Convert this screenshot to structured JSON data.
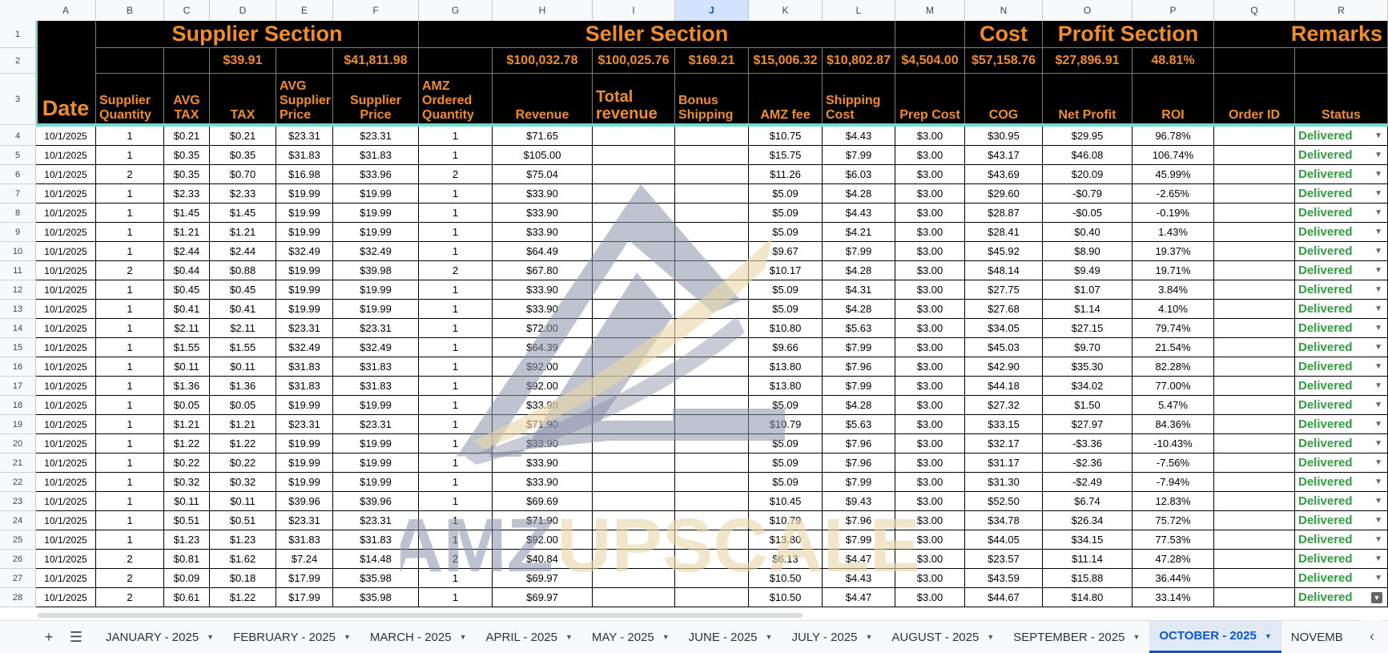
{
  "columns": [
    "A",
    "B",
    "C",
    "D",
    "E",
    "F",
    "G",
    "H",
    "I",
    "J",
    "K",
    "L",
    "M",
    "N",
    "O",
    "P",
    "Q",
    "R"
  ],
  "selected_column": "J",
  "section_titles": {
    "supplier": "Supplier Section",
    "seller": "Seller Section",
    "cost": "Cost",
    "profit": "Profit Section",
    "remarks": "Remarks"
  },
  "totals": {
    "tax": "$39.91",
    "supplier_price": "$41,811.98",
    "revenue": "$100,032.78",
    "total_revenue": "$100,025.76",
    "bonus_shipping": "$169.21",
    "amz_fee": "$15,006.32",
    "shipping_cost": "$10,802.87",
    "prep_cost": "$4,504.00",
    "cog": "$57,158.76",
    "net_profit": "$27,896.91",
    "roi": "48.81%"
  },
  "headers": {
    "date": "Date",
    "supplier_quantity": "Supplier Quantity",
    "avg_tax": "AVG TAX",
    "tax": "TAX",
    "avg_supplier_price": "AVG Supplier Price",
    "supplier_price": "Supplier Price",
    "amz_ordered_quantity": "AMZ Ordered Quantity",
    "revenue": "Revenue",
    "total_revenue": "Total revenue",
    "bonus_shipping": "Bonus Shipping",
    "amz_fee": "AMZ fee",
    "shipping_cost": "Shipping Cost",
    "prep_cost": "Prep Cost",
    "cog": "COG",
    "net_profit": "Net Profit",
    "roi": "ROI",
    "order_id": "Order ID",
    "status": "Status"
  },
  "header_row_numbers": [
    "1",
    "2",
    "3"
  ],
  "rows": [
    {
      "n": "4",
      "date": "10/1/2025",
      "qty": "1",
      "avg_tax": "$0.21",
      "tax": "$0.21",
      "avg_price": "$23.31",
      "price": "$23.31",
      "amz_qty": "1",
      "revenue": "$71.65",
      "total_rev": "",
      "bonus": "",
      "amz_fee": "$10.75",
      "ship": "$4.43",
      "prep": "$3.00",
      "cog": "$30.95",
      "profit": "$29.95",
      "roi": "96.78%",
      "order": "",
      "status": "Delivered"
    },
    {
      "n": "5",
      "date": "10/1/2025",
      "qty": "1",
      "avg_tax": "$0.35",
      "tax": "$0.35",
      "avg_price": "$31.83",
      "price": "$31.83",
      "amz_qty": "1",
      "revenue": "$105.00",
      "total_rev": "",
      "bonus": "",
      "amz_fee": "$15.75",
      "ship": "$7.99",
      "prep": "$3.00",
      "cog": "$43.17",
      "profit": "$46.08",
      "roi": "106.74%",
      "order": "",
      "status": "Delivered"
    },
    {
      "n": "6",
      "date": "10/1/2025",
      "qty": "2",
      "avg_tax": "$0.35",
      "tax": "$0.70",
      "avg_price": "$16.98",
      "price": "$33.96",
      "amz_qty": "2",
      "revenue": "$75.04",
      "total_rev": "",
      "bonus": "",
      "amz_fee": "$11.26",
      "ship": "$6.03",
      "prep": "$3.00",
      "cog": "$43.69",
      "profit": "$20.09",
      "roi": "45.99%",
      "order": "",
      "status": "Delivered"
    },
    {
      "n": "7",
      "date": "10/1/2025",
      "qty": "1",
      "avg_tax": "$2.33",
      "tax": "$2.33",
      "avg_price": "$19.99",
      "price": "$19.99",
      "amz_qty": "1",
      "revenue": "$33.90",
      "total_rev": "",
      "bonus": "",
      "amz_fee": "$5.09",
      "ship": "$4.28",
      "prep": "$3.00",
      "cog": "$29.60",
      "profit": "-$0.79",
      "roi": "-2.65%",
      "order": "",
      "status": "Delivered"
    },
    {
      "n": "8",
      "date": "10/1/2025",
      "qty": "1",
      "avg_tax": "$1.45",
      "tax": "$1.45",
      "avg_price": "$19.99",
      "price": "$19.99",
      "amz_qty": "1",
      "revenue": "$33.90",
      "total_rev": "",
      "bonus": "",
      "amz_fee": "$5.09",
      "ship": "$4.43",
      "prep": "$3.00",
      "cog": "$28.87",
      "profit": "-$0.05",
      "roi": "-0.19%",
      "order": "",
      "status": "Delivered"
    },
    {
      "n": "9",
      "date": "10/1/2025",
      "qty": "1",
      "avg_tax": "$1.21",
      "tax": "$1.21",
      "avg_price": "$19.99",
      "price": "$19.99",
      "amz_qty": "1",
      "revenue": "$33.90",
      "total_rev": "",
      "bonus": "",
      "amz_fee": "$5.09",
      "ship": "$4.21",
      "prep": "$3.00",
      "cog": "$28.41",
      "profit": "$0.40",
      "roi": "1.43%",
      "order": "",
      "status": "Delivered"
    },
    {
      "n": "10",
      "date": "10/1/2025",
      "qty": "1",
      "avg_tax": "$2.44",
      "tax": "$2.44",
      "avg_price": "$32.49",
      "price": "$32.49",
      "amz_qty": "1",
      "revenue": "$64.49",
      "total_rev": "",
      "bonus": "",
      "amz_fee": "$9.67",
      "ship": "$7.99",
      "prep": "$3.00",
      "cog": "$45.92",
      "profit": "$8.90",
      "roi": "19.37%",
      "order": "",
      "status": "Delivered"
    },
    {
      "n": "11",
      "date": "10/1/2025",
      "qty": "2",
      "avg_tax": "$0.44",
      "tax": "$0.88",
      "avg_price": "$19.99",
      "price": "$39.98",
      "amz_qty": "2",
      "revenue": "$67.80",
      "total_rev": "",
      "bonus": "",
      "amz_fee": "$10.17",
      "ship": "$4.28",
      "prep": "$3.00",
      "cog": "$48.14",
      "profit": "$9.49",
      "roi": "19.71%",
      "order": "",
      "status": "Delivered"
    },
    {
      "n": "12",
      "date": "10/1/2025",
      "qty": "1",
      "avg_tax": "$0.45",
      "tax": "$0.45",
      "avg_price": "$19.99",
      "price": "$19.99",
      "amz_qty": "1",
      "revenue": "$33.90",
      "total_rev": "",
      "bonus": "",
      "amz_fee": "$5.09",
      "ship": "$4.31",
      "prep": "$3.00",
      "cog": "$27.75",
      "profit": "$1.07",
      "roi": "3.84%",
      "order": "",
      "status": "Delivered"
    },
    {
      "n": "13",
      "date": "10/1/2025",
      "qty": "1",
      "avg_tax": "$0.41",
      "tax": "$0.41",
      "avg_price": "$19.99",
      "price": "$19.99",
      "amz_qty": "1",
      "revenue": "$33.90",
      "total_rev": "",
      "bonus": "",
      "amz_fee": "$5.09",
      "ship": "$4.28",
      "prep": "$3.00",
      "cog": "$27.68",
      "profit": "$1.14",
      "roi": "4.10%",
      "order": "",
      "status": "Delivered"
    },
    {
      "n": "14",
      "date": "10/1/2025",
      "qty": "1",
      "avg_tax": "$2.11",
      "tax": "$2.11",
      "avg_price": "$23.31",
      "price": "$23.31",
      "amz_qty": "1",
      "revenue": "$72.00",
      "total_rev": "",
      "bonus": "",
      "amz_fee": "$10.80",
      "ship": "$5.63",
      "prep": "$3.00",
      "cog": "$34.05",
      "profit": "$27.15",
      "roi": "79.74%",
      "order": "",
      "status": "Delivered"
    },
    {
      "n": "15",
      "date": "10/1/2025",
      "qty": "1",
      "avg_tax": "$1.55",
      "tax": "$1.55",
      "avg_price": "$32.49",
      "price": "$32.49",
      "amz_qty": "1",
      "revenue": "$64.39",
      "total_rev": "",
      "bonus": "",
      "amz_fee": "$9.66",
      "ship": "$7.99",
      "prep": "$3.00",
      "cog": "$45.03",
      "profit": "$9.70",
      "roi": "21.54%",
      "order": "",
      "status": "Delivered"
    },
    {
      "n": "16",
      "date": "10/1/2025",
      "qty": "1",
      "avg_tax": "$0.11",
      "tax": "$0.11",
      "avg_price": "$31.83",
      "price": "$31.83",
      "amz_qty": "1",
      "revenue": "$92.00",
      "total_rev": "",
      "bonus": "",
      "amz_fee": "$13.80",
      "ship": "$7.96",
      "prep": "$3.00",
      "cog": "$42.90",
      "profit": "$35.30",
      "roi": "82.28%",
      "order": "",
      "status": "Delivered"
    },
    {
      "n": "17",
      "date": "10/1/2025",
      "qty": "1",
      "avg_tax": "$1.36",
      "tax": "$1.36",
      "avg_price": "$31.83",
      "price": "$31.83",
      "amz_qty": "1",
      "revenue": "$92.00",
      "total_rev": "",
      "bonus": "",
      "amz_fee": "$13.80",
      "ship": "$7.99",
      "prep": "$3.00",
      "cog": "$44.18",
      "profit": "$34.02",
      "roi": "77.00%",
      "order": "",
      "status": "Delivered"
    },
    {
      "n": "18",
      "date": "10/1/2025",
      "qty": "1",
      "avg_tax": "$0.05",
      "tax": "$0.05",
      "avg_price": "$19.99",
      "price": "$19.99",
      "amz_qty": "1",
      "revenue": "$33.90",
      "total_rev": "",
      "bonus": "",
      "amz_fee": "$5.09",
      "ship": "$4.28",
      "prep": "$3.00",
      "cog": "$27.32",
      "profit": "$1.50",
      "roi": "5.47%",
      "order": "",
      "status": "Delivered"
    },
    {
      "n": "19",
      "date": "10/1/2025",
      "qty": "1",
      "avg_tax": "$1.21",
      "tax": "$1.21",
      "avg_price": "$23.31",
      "price": "$23.31",
      "amz_qty": "1",
      "revenue": "$71.90",
      "total_rev": "",
      "bonus": "",
      "amz_fee": "$10.79",
      "ship": "$5.63",
      "prep": "$3.00",
      "cog": "$33.15",
      "profit": "$27.97",
      "roi": "84.36%",
      "order": "",
      "status": "Delivered"
    },
    {
      "n": "20",
      "date": "10/1/2025",
      "qty": "1",
      "avg_tax": "$1.22",
      "tax": "$1.22",
      "avg_price": "$19.99",
      "price": "$19.99",
      "amz_qty": "1",
      "revenue": "$33.90",
      "total_rev": "",
      "bonus": "",
      "amz_fee": "$5.09",
      "ship": "$7.96",
      "prep": "$3.00",
      "cog": "$32.17",
      "profit": "-$3.36",
      "roi": "-10.43%",
      "order": "",
      "status": "Delivered"
    },
    {
      "n": "21",
      "date": "10/1/2025",
      "qty": "1",
      "avg_tax": "$0.22",
      "tax": "$0.22",
      "avg_price": "$19.99",
      "price": "$19.99",
      "amz_qty": "1",
      "revenue": "$33.90",
      "total_rev": "",
      "bonus": "",
      "amz_fee": "$5.09",
      "ship": "$7.96",
      "prep": "$3.00",
      "cog": "$31.17",
      "profit": "-$2.36",
      "roi": "-7.56%",
      "order": "",
      "status": "Delivered"
    },
    {
      "n": "22",
      "date": "10/1/2025",
      "qty": "1",
      "avg_tax": "$0.32",
      "tax": "$0.32",
      "avg_price": "$19.99",
      "price": "$19.99",
      "amz_qty": "1",
      "revenue": "$33.90",
      "total_rev": "",
      "bonus": "",
      "amz_fee": "$5.09",
      "ship": "$7.99",
      "prep": "$3.00",
      "cog": "$31.30",
      "profit": "-$2.49",
      "roi": "-7.94%",
      "order": "",
      "status": "Delivered"
    },
    {
      "n": "23",
      "date": "10/1/2025",
      "qty": "1",
      "avg_tax": "$0.11",
      "tax": "$0.11",
      "avg_price": "$39.96",
      "price": "$39.96",
      "amz_qty": "1",
      "revenue": "$69.69",
      "total_rev": "",
      "bonus": "",
      "amz_fee": "$10.45",
      "ship": "$9.43",
      "prep": "$3.00",
      "cog": "$52.50",
      "profit": "$6.74",
      "roi": "12.83%",
      "order": "",
      "status": "Delivered"
    },
    {
      "n": "24",
      "date": "10/1/2025",
      "qty": "1",
      "avg_tax": "$0.51",
      "tax": "$0.51",
      "avg_price": "$23.31",
      "price": "$23.31",
      "amz_qty": "1",
      "revenue": "$71.90",
      "total_rev": "",
      "bonus": "",
      "amz_fee": "$10.79",
      "ship": "$7.96",
      "prep": "$3.00",
      "cog": "$34.78",
      "profit": "$26.34",
      "roi": "75.72%",
      "order": "",
      "status": "Delivered"
    },
    {
      "n": "25",
      "date": "10/1/2025",
      "qty": "1",
      "avg_tax": "$1.23",
      "tax": "$1.23",
      "avg_price": "$31.83",
      "price": "$31.83",
      "amz_qty": "1",
      "revenue": "$92.00",
      "total_rev": "",
      "bonus": "",
      "amz_fee": "$13.80",
      "ship": "$7.99",
      "prep": "$3.00",
      "cog": "$44.05",
      "profit": "$34.15",
      "roi": "77.53%",
      "order": "",
      "status": "Delivered"
    },
    {
      "n": "26",
      "date": "10/1/2025",
      "qty": "2",
      "avg_tax": "$0.81",
      "tax": "$1.62",
      "avg_price": "$7.24",
      "price": "$14.48",
      "amz_qty": "2",
      "revenue": "$40.84",
      "total_rev": "",
      "bonus": "",
      "amz_fee": "$6.13",
      "ship": "$4.47",
      "prep": "$3.00",
      "cog": "$23.57",
      "profit": "$11.14",
      "roi": "47.28%",
      "order": "",
      "status": "Delivered"
    },
    {
      "n": "27",
      "date": "10/1/2025",
      "qty": "2",
      "avg_tax": "$0.09",
      "tax": "$0.18",
      "avg_price": "$17.99",
      "price": "$35.98",
      "amz_qty": "1",
      "revenue": "$69.97",
      "total_rev": "",
      "bonus": "",
      "amz_fee": "$10.50",
      "ship": "$4.43",
      "prep": "$3.00",
      "cog": "$43.59",
      "profit": "$15.88",
      "roi": "36.44%",
      "order": "",
      "status": "Delivered"
    },
    {
      "n": "28",
      "date": "10/1/2025",
      "qty": "2",
      "avg_tax": "$0.61",
      "tax": "$1.22",
      "avg_price": "$17.99",
      "price": "$35.98",
      "amz_qty": "1",
      "revenue": "$69.97",
      "total_rev": "",
      "bonus": "",
      "amz_fee": "$10.50",
      "ship": "$4.47",
      "prep": "$3.00",
      "cog": "$44.67",
      "profit": "$14.80",
      "roi": "33.14%",
      "order": "",
      "status": "Delivered"
    }
  ],
  "watermark_text": {
    "part1": "AMZ",
    "part2": "UPSCALE"
  },
  "tabs": [
    "JANUARY - 2025",
    "FEBRUARY - 2025",
    "MARCH - 2025",
    "APRIL - 2025",
    "MAY - 2025",
    "JUNE - 2025",
    "JULY - 2025",
    "AUGUST - 2025",
    "SEPTEMBER - 2025",
    "OCTOBER - 2025",
    "NOVEMB"
  ],
  "active_tab": "OCTOBER - 2025",
  "icons": {
    "add_sheet": "plus-icon",
    "all_sheets": "menu-icon",
    "scroll_left": "chevron-left-icon"
  },
  "colors": {
    "header_bg": "#000000",
    "header_text": "#f28c28",
    "status_green": "#2e9e3e",
    "accent_cyan": "#6fd9d4",
    "active_tab": "#0b57d0"
  }
}
